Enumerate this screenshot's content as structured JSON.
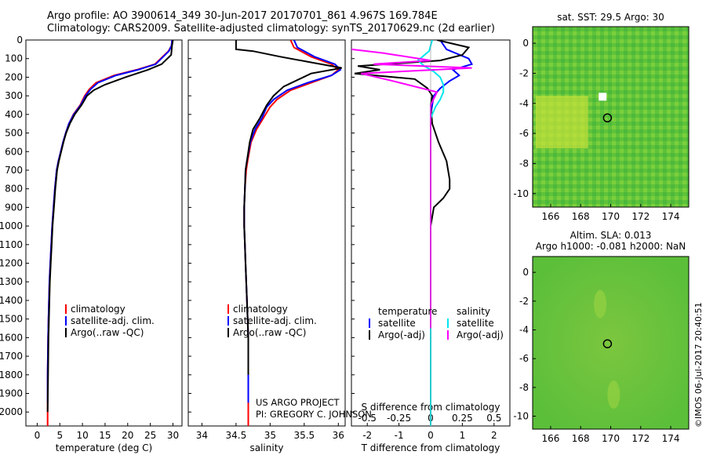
{
  "title": {
    "line1": "Argo profile: AO 3900614_349 30-Jun-2017 20170701_861 4.967S 169.784E",
    "line2": "Climatology: CARS2009. Satellite-adjusted climatology: synTS_20170629.nc (2d earlier)"
  },
  "credit": {
    "line1": "US ARGO PROJECT",
    "line2": "PI: GREGORY C. JOHNSON"
  },
  "stamp": "©IMOS 06-Jul-2017 20:40:51",
  "colors": {
    "climatology": "#ff0000",
    "satellite": "#0000ff",
    "argo": "#000000",
    "sal_satellite": "#00e5ee",
    "sal_argo": "#ff00ff"
  },
  "chart_data": [
    {
      "id": "temperature",
      "type": "line",
      "xlabel": "temperature (deg C)",
      "ylabel": "",
      "xlim": [
        -2.5,
        32
      ],
      "ylim": [
        2075,
        0
      ],
      "xticks": [
        0,
        5,
        10,
        15,
        20,
        25,
        30
      ],
      "xticklabels": [
        "0",
        "5",
        "10",
        "15",
        "20",
        "25",
        "30"
      ],
      "yticks": [
        0,
        100,
        200,
        300,
        400,
        500,
        600,
        700,
        800,
        900,
        1000,
        1100,
        1200,
        1300,
        1400,
        1500,
        1600,
        1700,
        1800,
        1900,
        2000
      ],
      "legend": [
        "climatology",
        "satellite-adj. clim.",
        "Argo(..raw -QC)"
      ],
      "series": [
        {
          "name": "climatology",
          "color": "#ff0000",
          "x": [
            29.8,
            29.7,
            29.0,
            26.0,
            22.0,
            17.0,
            13.0,
            11.5,
            10.5,
            9.5,
            8.0,
            7.0,
            6.3,
            5.7,
            5.2,
            4.7,
            4.3,
            3.9,
            3.6,
            3.3,
            3.1,
            2.9,
            2.7,
            2.6,
            2.5,
            2.4,
            2.3,
            2.3
          ],
          "y": [
            0,
            30,
            60,
            130,
            160,
            190,
            230,
            265,
            300,
            350,
            400,
            450,
            500,
            550,
            600,
            650,
            700,
            800,
            900,
            1000,
            1100,
            1200,
            1300,
            1400,
            1500,
            1600,
            1800,
            2075
          ]
        },
        {
          "name": "satellite-adj. clim.",
          "color": "#0000ff",
          "x": [
            29.8,
            29.7,
            29.1,
            26.2,
            22.3,
            17.4,
            13.4,
            11.8,
            10.7,
            9.6,
            8.1,
            7.0,
            6.3,
            5.7,
            5.2,
            4.7,
            4.3,
            3.9,
            3.6,
            3.3,
            3.1,
            2.9,
            2.7,
            2.6,
            2.5,
            2.4,
            2.3,
            2.3
          ],
          "y": [
            0,
            30,
            60,
            130,
            160,
            190,
            230,
            265,
            300,
            350,
            400,
            450,
            500,
            550,
            600,
            650,
            700,
            800,
            900,
            1000,
            1100,
            1200,
            1300,
            1400,
            1500,
            1600,
            1800,
            1950
          ]
        },
        {
          "name": "Argo(..raw -QC)",
          "color": "#000000",
          "x": [
            30.0,
            29.8,
            29.6,
            27.5,
            24.5,
            19.5,
            15.0,
            12.5,
            11.0,
            9.8,
            8.3,
            7.2,
            6.4,
            5.8,
            5.3,
            4.8,
            4.4,
            4.0,
            3.7,
            3.4,
            3.2,
            3.0,
            2.8,
            2.7,
            2.6,
            2.5,
            2.4,
            2.3
          ],
          "y": [
            0,
            30,
            80,
            130,
            160,
            200,
            240,
            270,
            300,
            350,
            400,
            450,
            500,
            550,
            600,
            650,
            700,
            800,
            900,
            1000,
            1100,
            1200,
            1300,
            1400,
            1500,
            1600,
            1800,
            2000
          ]
        }
      ]
    },
    {
      "id": "salinity",
      "type": "line",
      "xlabel": "salinity",
      "ylabel": "",
      "xlim": [
        33.8,
        36.1
      ],
      "ylim": [
        2075,
        0
      ],
      "xticks": [
        34,
        34.5,
        35,
        35.5,
        36
      ],
      "xticklabels": [
        "34",
        "34.5",
        "35",
        "35.5",
        "36"
      ],
      "legend": [
        "climatology",
        "satellite-adj. clim.",
        "Argo(..raw -QC)"
      ],
      "series": [
        {
          "name": "climatology",
          "color": "#ff0000",
          "x": [
            35.3,
            35.35,
            35.6,
            35.9,
            36.0,
            35.9,
            35.6,
            35.3,
            35.1,
            35.0,
            34.9,
            34.8,
            34.72,
            34.67,
            34.65,
            34.63,
            34.62,
            34.62,
            34.63,
            34.64,
            34.65,
            34.66,
            34.67,
            34.68,
            34.68,
            34.68
          ],
          "y": [
            0,
            40,
            90,
            130,
            160,
            190,
            230,
            270,
            320,
            360,
            420,
            480,
            550,
            650,
            700,
            800,
            900,
            1000,
            1100,
            1200,
            1300,
            1400,
            1500,
            1600,
            1800,
            2075
          ]
        },
        {
          "name": "satellite-adj. clim.",
          "color": "#0000ff",
          "x": [
            35.35,
            35.4,
            35.65,
            35.95,
            36.03,
            35.9,
            35.55,
            35.25,
            35.05,
            34.95,
            34.88,
            34.78,
            34.71,
            34.66,
            34.64,
            34.63,
            34.62,
            34.62,
            34.63,
            34.64,
            34.65,
            34.66,
            34.67,
            34.68,
            34.68,
            34.68
          ],
          "y": [
            0,
            40,
            90,
            130,
            160,
            190,
            230,
            270,
            320,
            360,
            420,
            480,
            550,
            650,
            700,
            800,
            900,
            1000,
            1100,
            1200,
            1300,
            1400,
            1500,
            1600,
            1800,
            1950
          ]
        },
        {
          "name": "Argo(..raw -QC)",
          "color": "#000000",
          "x": [
            34.5,
            34.5,
            34.75,
            35.15,
            35.6,
            36.05,
            35.6,
            35.2,
            35.05,
            34.95,
            34.85,
            34.75,
            34.7,
            34.66,
            34.64,
            34.63,
            34.62,
            34.62,
            34.63,
            34.64,
            34.65,
            34.66,
            34.67,
            34.68,
            34.68
          ],
          "y": [
            0,
            50,
            60,
            90,
            120,
            150,
            180,
            250,
            300,
            350,
            420,
            480,
            550,
            650,
            700,
            800,
            900,
            1000,
            1100,
            1200,
            1300,
            1400,
            1500,
            1600,
            1800
          ]
        }
      ]
    },
    {
      "id": "differences",
      "type": "line",
      "xlabel": "T difference from climatology",
      "xlabel_top": "S difference from climatology",
      "xlim": [
        -2.5,
        2.5
      ],
      "ylim": [
        2075,
        0
      ],
      "xticks": [
        -2,
        -1,
        0,
        1,
        2
      ],
      "xticklabels": [
        "-2",
        "-1",
        "0",
        "1",
        "2"
      ],
      "xticks_top": [
        -2,
        -1,
        0,
        1,
        2
      ],
      "xticklabels_top": [
        "-0.5",
        "-0.25",
        "0",
        "0.25",
        "0.5"
      ],
      "legend_groups": [
        {
          "header": "temperature",
          "items": [
            "satellite",
            "Argo(-adj)"
          ]
        },
        {
          "header": "salinity",
          "items": [
            "satellite",
            "Argo(-adj)"
          ]
        }
      ],
      "series": [
        {
          "name": "temperature satellite",
          "color": "#0000ff",
          "x": [
            0.3,
            0.5,
            1.2,
            1.3,
            0.7,
            0.9,
            0.6,
            0.3,
            0.1,
            0.05,
            0.0,
            0.0,
            0.0,
            0.0,
            0.0,
            0.0
          ],
          "y": [
            0,
            50,
            100,
            130,
            160,
            190,
            220,
            260,
            300,
            350,
            400,
            500,
            700,
            1000,
            1500,
            2075
          ]
        },
        {
          "name": "temperature Argo(-adj)",
          "color": "#000000",
          "x": [
            0.2,
            1.2,
            1.0,
            0.3,
            -2.3,
            -1.6,
            -2.4,
            -0.5,
            -0.1,
            0.05,
            0.0,
            0.05,
            0.25,
            0.5,
            0.6,
            0.6,
            0.4,
            0.1,
            0.05,
            0.0,
            0.0,
            0.0,
            0.0
          ],
          "y": [
            0,
            40,
            80,
            110,
            140,
            160,
            180,
            210,
            260,
            300,
            350,
            450,
            550,
            650,
            750,
            800,
            850,
            900,
            950,
            1000,
            1100,
            1500,
            2000
          ]
        },
        {
          "name": "salinity satellite",
          "color": "#00e5ee",
          "x": [
            0.05,
            -0.05,
            -0.4,
            -0.2,
            0.1,
            0.3,
            0.4,
            0.4,
            0.3,
            0.15,
            0.0,
            0.0,
            0.0,
            0.0
          ],
          "y": [
            0,
            60,
            110,
            140,
            170,
            200,
            240,
            280,
            320,
            360,
            420,
            700,
            1200,
            2075
          ]
        },
        {
          "name": "salinity Argo(-adj)",
          "color": "#ff00ff",
          "x": [
            -2.5,
            -1.5,
            0.0,
            -1.8,
            1.3,
            -2.2,
            -1.2,
            0.2,
            0.0,
            0.0,
            0.0,
            0.0
          ],
          "y": [
            50,
            70,
            110,
            130,
            150,
            180,
            220,
            280,
            350,
            700,
            1200,
            1550
          ]
        }
      ]
    },
    {
      "id": "map_sst",
      "type": "heatmap",
      "title": "sat. SST: 29.5 Argo: 30",
      "xlim": [
        164.8,
        175.2
      ],
      "ylim": [
        -10.9,
        1.1
      ],
      "xticks": [
        166,
        168,
        170,
        172,
        174
      ],
      "yticks": [
        0,
        -2,
        -4,
        -6,
        -8,
        -10
      ],
      "marker": {
        "lon": 169.784,
        "lat": -4.967
      }
    },
    {
      "id": "map_sla",
      "type": "heatmap",
      "title": "Altim. SLA: 0.013",
      "subtitle": "Argo h1000: -0.081 h2000: NaN",
      "xlim": [
        164.8,
        175.2
      ],
      "ylim": [
        -10.9,
        1.1
      ],
      "xticks": [
        166,
        168,
        170,
        172,
        174
      ],
      "yticks": [
        0,
        -2,
        -4,
        -6,
        -8,
        -10
      ],
      "marker": {
        "lon": 169.784,
        "lat": -4.967
      }
    }
  ]
}
